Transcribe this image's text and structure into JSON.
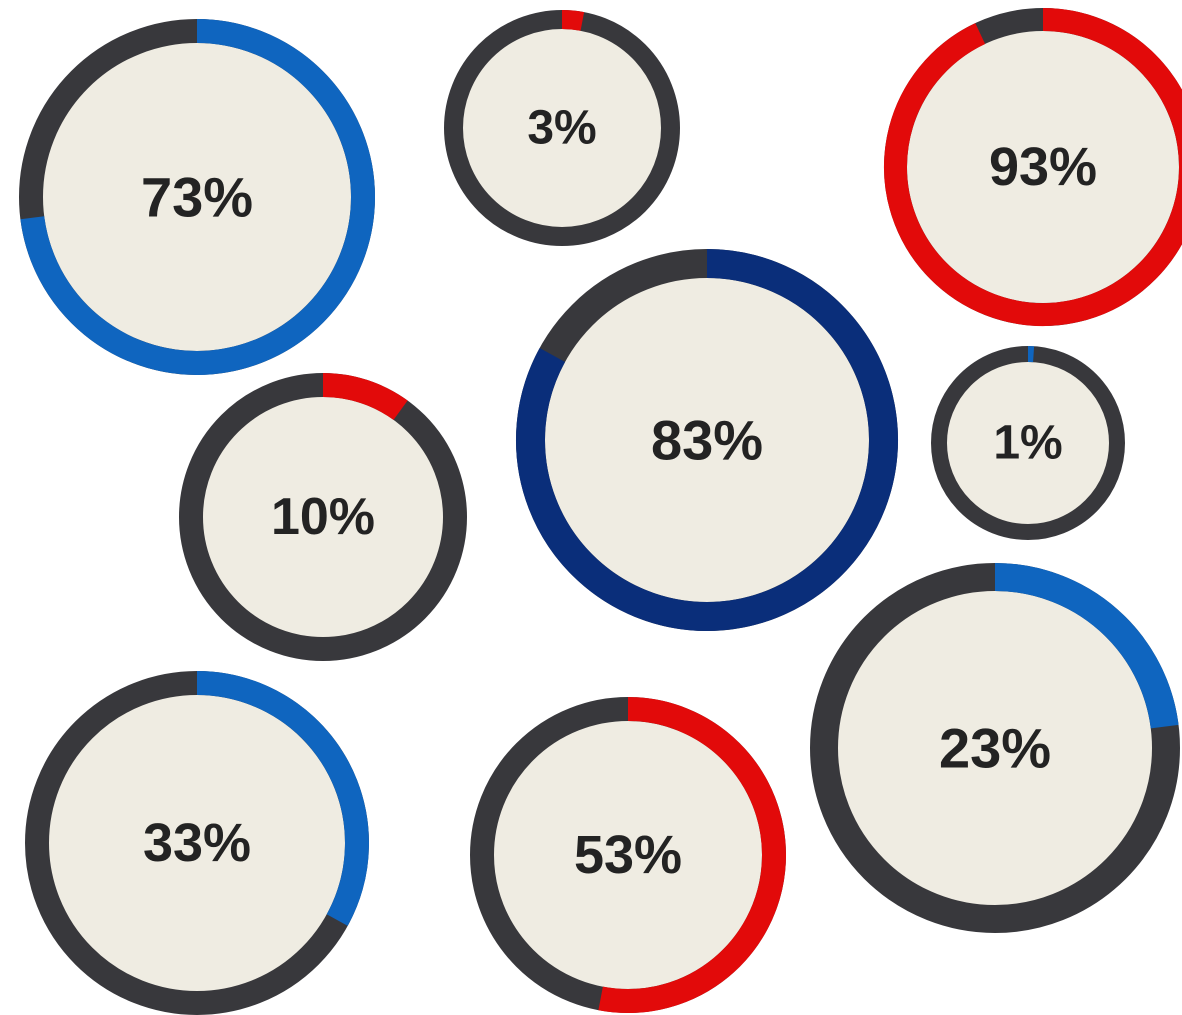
{
  "colors": {
    "track": "#38383c",
    "face": "#efece2",
    "blue": "#0f65bf",
    "red": "#e20a0a",
    "navy": "#0a2e7a"
  },
  "rings": [
    {
      "id": "ring-73",
      "label": "73%",
      "value": 73,
      "color": "blue"
    },
    {
      "id": "ring-3",
      "label": "3%",
      "value": 3,
      "color": "red"
    },
    {
      "id": "ring-93",
      "label": "93%",
      "value": 93,
      "color": "red"
    },
    {
      "id": "ring-83",
      "label": "83%",
      "value": 83,
      "color": "navy"
    },
    {
      "id": "ring-10",
      "label": "10%",
      "value": 10,
      "color": "red"
    },
    {
      "id": "ring-1",
      "label": "1%",
      "value": 1,
      "color": "blue"
    },
    {
      "id": "ring-23",
      "label": "23%",
      "value": 23,
      "color": "blue"
    },
    {
      "id": "ring-33",
      "label": "33%",
      "value": 33,
      "color": "blue"
    },
    {
      "id": "ring-53",
      "label": "53%",
      "value": 53,
      "color": "red"
    }
  ]
}
